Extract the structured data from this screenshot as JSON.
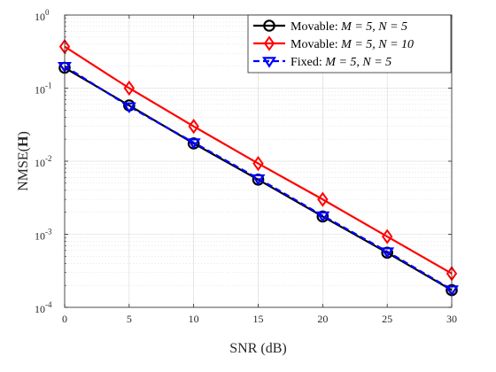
{
  "chart_data": {
    "type": "line",
    "title": "",
    "xlabel": "SNR (dB)",
    "ylabel": "NMSE(H)",
    "ylabel_parts": {
      "prefix": "NMSE(",
      "symbol": "H",
      "suffix": ")"
    },
    "xlim": [
      0,
      30
    ],
    "ylim": [
      0.0001,
      1
    ],
    "yscale": "log",
    "grid": true,
    "minor_grid": true,
    "legend_position": "top-right",
    "x_ticks": [
      0,
      5,
      10,
      15,
      20,
      25,
      30
    ],
    "x_tick_labels": [
      "0",
      "5",
      "10",
      "15",
      "20",
      "25",
      "30"
    ],
    "y_ticks": [
      0.0001,
      0.001,
      0.01,
      0.1,
      1
    ],
    "y_tick_labels": [
      {
        "base": "10",
        "exp": "-4"
      },
      {
        "base": "10",
        "exp": "-3"
      },
      {
        "base": "10",
        "exp": "-2"
      },
      {
        "base": "10",
        "exp": "-1"
      },
      {
        "base": "10",
        "exp": "0"
      }
    ],
    "x": [
      0,
      5,
      10,
      15,
      20,
      25,
      30
    ],
    "series": [
      {
        "name": "Movable: M = 5, N = 5",
        "legend_prefix": "Movable:",
        "legend_math": "M = 5, N = 5",
        "color": "#000000",
        "marker": "circle",
        "line_style": "solid",
        "values": [
          0.19,
          0.058,
          0.0175,
          0.0056,
          0.00175,
          0.00056,
          0.000172
        ]
      },
      {
        "name": "Movable: M = 5, N = 10",
        "legend_prefix": "Movable:",
        "legend_math": "M = 5, N = 10",
        "color": "#ff0000",
        "marker": "diamond",
        "line_style": "solid",
        "values": [
          0.37,
          0.1,
          0.03,
          0.0093,
          0.003,
          0.00093,
          0.00029
        ]
      },
      {
        "name": "Fixed: M = 5, N = 5",
        "legend_prefix": "Fixed:",
        "legend_math": "M = 5, N = 5",
        "color": "#0000ff",
        "marker": "triangle-down",
        "line_style": "dashed",
        "values": [
          0.2,
          0.056,
          0.018,
          0.0058,
          0.0018,
          0.00058,
          0.000175
        ]
      }
    ]
  }
}
